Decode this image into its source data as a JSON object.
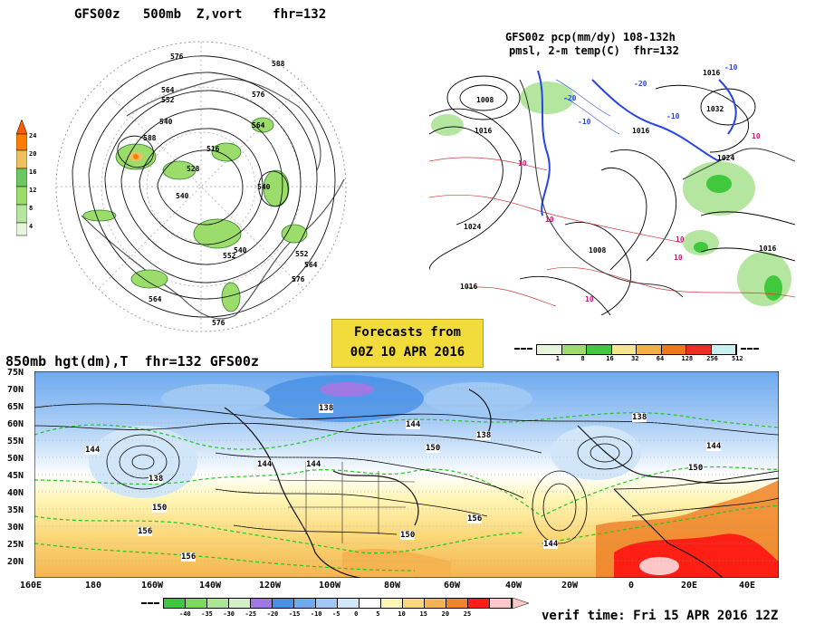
{
  "panels": {
    "nh500": {
      "title": "GFS00z   500mb  Z,vort    fhr=132",
      "vort_colorbar": {
        "labels": [
          "24",
          "20",
          "16",
          "12",
          "8",
          "4"
        ],
        "colors": [
          "#ff7e00",
          "#f0c060",
          "#9bdc6b",
          "#6cc860",
          "#b4e6a0",
          "#e6f5dc"
        ]
      },
      "contour_labels": [
        "576",
        "588",
        "576",
        "564",
        "552",
        "540",
        "588",
        "516",
        "528",
        "540",
        "564",
        "540",
        "552",
        "564",
        "576",
        "552",
        "540",
        "564",
        "576"
      ]
    },
    "na_precip": {
      "title_line1": "GFS00z pcp(mm/dy) 108-132h",
      "title_line2": "pmsl, 2-m temp(C)  fhr=132",
      "pressure_labels": [
        "1008",
        "1016",
        "1024",
        "1016",
        "1008",
        "1016",
        "1016",
        "1032",
        "1024",
        "1016"
      ],
      "temp_labels": [
        "-10",
        "-20",
        "-10",
        "-20",
        "-10",
        "10",
        "10",
        "10",
        "10",
        "10",
        "10"
      ],
      "precip_colorbar": {
        "labels": [
          "1",
          "8",
          "16",
          "32",
          "64",
          "128",
          "256",
          "512"
        ],
        "colors": [
          "#e6f5dc",
          "#9bdc6b",
          "#41c83c",
          "#f5e68c",
          "#f5b041",
          "#f07814",
          "#e6321e",
          "#c8f0f0"
        ]
      }
    },
    "banner": {
      "line1": "Forecasts from",
      "line2": "00Z 10 APR 2016"
    },
    "h850": {
      "title": "850mb hgt(dm),T  fhr=132 GFS00z",
      "lat_labels": [
        "75N",
        "70N",
        "65N",
        "60N",
        "55N",
        "50N",
        "45N",
        "40N",
        "35N",
        "30N",
        "25N",
        "20N"
      ],
      "lon_labels": [
        "160E",
        "180",
        "160W",
        "140W",
        "120W",
        "100W",
        "80W",
        "60W",
        "40W",
        "20W",
        "0",
        "20E",
        "40E"
      ],
      "height_labels": [
        "144",
        "138",
        "150",
        "156",
        "156",
        "144",
        "144",
        "138",
        "144",
        "138",
        "150",
        "150",
        "156",
        "144",
        "138",
        "144",
        "150"
      ],
      "temp_colorbar": {
        "labels": [
          "-40",
          "-35",
          "-30",
          "-25",
          "-20",
          "-15",
          "-10",
          "-5",
          "0",
          "5",
          "10",
          "15",
          "20",
          "25"
        ],
        "colors": [
          "#3cc83c",
          "#78dc5a",
          "#aae696",
          "#d2f0c8",
          "#a078e6",
          "#4690e6",
          "#6eaaf0",
          "#a0c8f5",
          "#d2e6fa",
          "#ffffff",
          "#fff5b4",
          "#fad778",
          "#f5b450",
          "#f08228",
          "#ff1e14",
          "#ffc8c8"
        ]
      }
    },
    "verif": "verif time: Fri 15 APR 2016 12Z"
  }
}
